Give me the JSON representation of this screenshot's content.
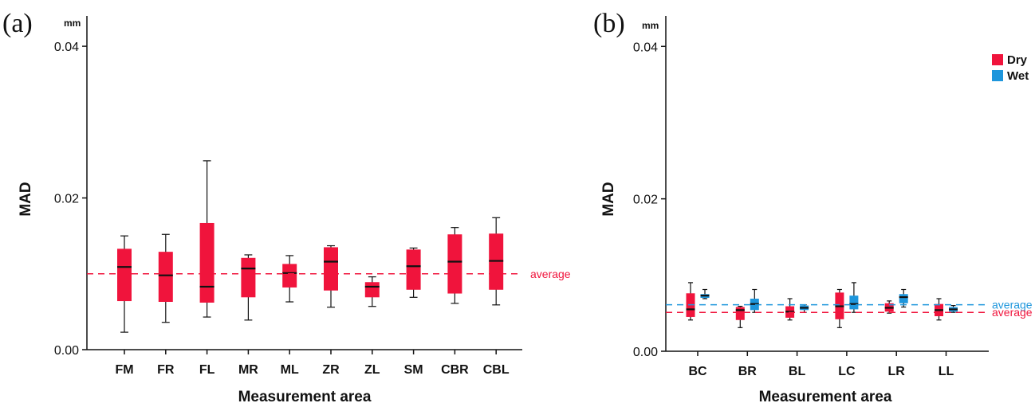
{
  "chart_data": [
    {
      "type": "box",
      "panel": "(a)",
      "unit": "mm",
      "xlabel": "Measurement area",
      "ylabel": "MAD",
      "ylim": [
        0,
        0.044
      ],
      "yticks": [
        "0.00",
        "0.02",
        "0.04"
      ],
      "categories": [
        "FM",
        "FR",
        "FL",
        "MR",
        "ML",
        "ZR",
        "ZL",
        "SM",
        "CBR",
        "CBL"
      ],
      "series": [
        {
          "color": "#f0143c",
          "boxes": [
            {
              "min": 0.0023,
              "q1": 0.0064,
              "median": 0.0109,
              "q3": 0.0133,
              "max": 0.015
            },
            {
              "min": 0.0036,
              "q1": 0.0063,
              "median": 0.0098,
              "q3": 0.0129,
              "max": 0.0152
            },
            {
              "min": 0.0043,
              "q1": 0.0062,
              "median": 0.0083,
              "q3": 0.0167,
              "max": 0.0249
            },
            {
              "min": 0.0039,
              "q1": 0.0069,
              "median": 0.0107,
              "q3": 0.0121,
              "max": 0.0125
            },
            {
              "min": 0.0063,
              "q1": 0.0082,
              "median": 0.0101,
              "q3": 0.0113,
              "max": 0.0124
            },
            {
              "min": 0.0056,
              "q1": 0.0078,
              "median": 0.0116,
              "q3": 0.0135,
              "max": 0.0137
            },
            {
              "min": 0.0057,
              "q1": 0.0069,
              "median": 0.0083,
              "q3": 0.0089,
              "max": 0.0096
            },
            {
              "min": 0.0069,
              "q1": 0.0079,
              "median": 0.011,
              "q3": 0.0132,
              "max": 0.0134
            },
            {
              "min": 0.0061,
              "q1": 0.0074,
              "median": 0.0116,
              "q3": 0.0152,
              "max": 0.0161
            },
            {
              "min": 0.0059,
              "q1": 0.0079,
              "median": 0.0117,
              "q3": 0.0153,
              "max": 0.0174
            }
          ]
        }
      ],
      "reference_lines": [
        {
          "label": "average",
          "value": 0.01,
          "color": "#f0143c"
        }
      ]
    },
    {
      "type": "box",
      "panel": "(b)",
      "unit": "mm",
      "xlabel": "Measurement area",
      "ylabel": "MAD",
      "ylim": [
        0,
        0.044
      ],
      "yticks": [
        "0.00",
        "0.02",
        "0.04"
      ],
      "categories": [
        "BC",
        "BR",
        "BL",
        "LC",
        "LR",
        "LL"
      ],
      "legend_position": "top-right",
      "series": [
        {
          "name": "Dry",
          "color": "#f0143c",
          "boxes": [
            {
              "min": 0.0041,
              "q1": 0.0045,
              "median": 0.0055,
              "q3": 0.0076,
              "max": 0.009
            },
            {
              "min": 0.0031,
              "q1": 0.0041,
              "median": 0.0054,
              "q3": 0.0058,
              "max": 0.0059
            },
            {
              "min": 0.0041,
              "q1": 0.0044,
              "median": 0.0052,
              "q3": 0.0059,
              "max": 0.0069
            },
            {
              "min": 0.0031,
              "q1": 0.0042,
              "median": 0.0059,
              "q3": 0.0077,
              "max": 0.0081
            },
            {
              "min": 0.005,
              "q1": 0.0052,
              "median": 0.0057,
              "q3": 0.0063,
              "max": 0.0066
            },
            {
              "min": 0.0041,
              "q1": 0.0046,
              "median": 0.0054,
              "q3": 0.0062,
              "max": 0.0069
            }
          ]
        },
        {
          "name": "Wet",
          "color": "#1e96dc",
          "boxes": [
            {
              "min": 0.0069,
              "q1": 0.007,
              "median": 0.0073,
              "q3": 0.0075,
              "max": 0.0081
            },
            {
              "min": 0.0051,
              "q1": 0.0054,
              "median": 0.0062,
              "q3": 0.0069,
              "max": 0.0081
            },
            {
              "min": 0.0051,
              "q1": 0.0054,
              "median": 0.0057,
              "q3": 0.006,
              "max": 0.0061
            },
            {
              "min": 0.0051,
              "q1": 0.0055,
              "median": 0.0062,
              "q3": 0.0073,
              "max": 0.009
            },
            {
              "min": 0.0058,
              "q1": 0.0063,
              "median": 0.0071,
              "q3": 0.0075,
              "max": 0.0081
            },
            {
              "min": 0.0051,
              "q1": 0.0052,
              "median": 0.0055,
              "q3": 0.0058,
              "max": 0.006
            }
          ]
        }
      ],
      "reference_lines": [
        {
          "label": "average",
          "value": 0.0061,
          "color": "#1e96dc"
        },
        {
          "label": "average",
          "value": 0.0051,
          "color": "#f0143c"
        }
      ]
    }
  ]
}
